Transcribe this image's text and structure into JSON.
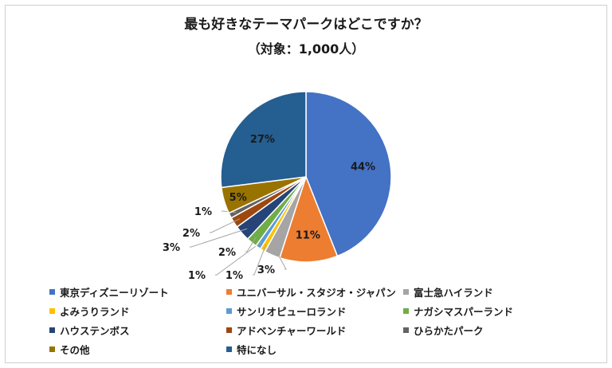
{
  "chart_data": {
    "type": "pie",
    "title": "最も好きなテーマパークはどこですか？",
    "subtitle": "（対象：1,000人）",
    "slices": [
      {
        "label": "東京ディズニーリゾート",
        "value": 44,
        "value_label": "44%",
        "color": "#4472c4"
      },
      {
        "label": "ユニバーサル・スタジオ・ジャパン",
        "value": 11,
        "value_label": "11%",
        "color": "#ed7d31"
      },
      {
        "label": "富士急ハイランド",
        "value": 3,
        "value_label": "3%",
        "color": "#a5a5a5"
      },
      {
        "label": "よみうりランド",
        "value": 1,
        "value_label": "1%",
        "color": "#ffc000"
      },
      {
        "label": "サンリオピューロランド",
        "value": 1,
        "value_label": "1%",
        "color": "#5b9bd5"
      },
      {
        "label": "ナガシマスパーランド",
        "value": 2,
        "value_label": "2%",
        "color": "#70ad47"
      },
      {
        "label": "ハウステンボス",
        "value": 3,
        "value_label": "3%",
        "color": "#264478"
      },
      {
        "label": "アドベンチャーワールド",
        "value": 2,
        "value_label": "2%",
        "color": "#9e480e"
      },
      {
        "label": "ひらかたパーク",
        "value": 1,
        "value_label": "1%",
        "color": "#636363"
      },
      {
        "label": "その他",
        "value": 5,
        "value_label": "5%",
        "color": "#997300"
      },
      {
        "label": "特になし",
        "value": 27,
        "value_label": "27%",
        "color": "#255e91"
      }
    ],
    "legend_position": "bottom"
  }
}
